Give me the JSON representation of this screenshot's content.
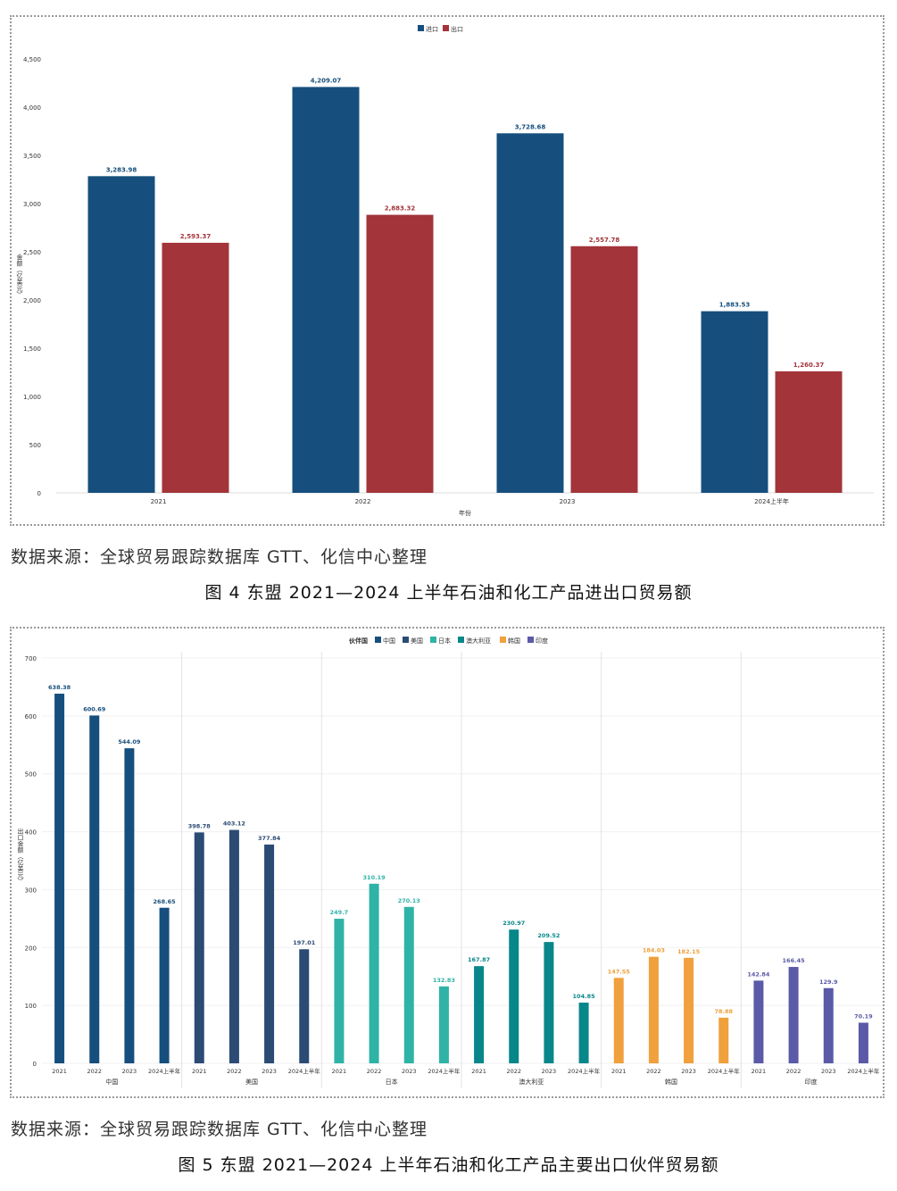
{
  "figures": [
    {
      "source": "数据来源：全球贸易跟踪数据库 GTT、化信中心整理",
      "caption": "图 4 东盟 2021—2024 上半年石油和化工产品进出口贸易额"
    },
    {
      "source": "数据来源：全球贸易跟踪数据库 GTT、化信中心整理",
      "caption": "图 5 东盟 2021—2024 上半年石油和化工产品主要出口伙伴贸易额"
    }
  ],
  "chart_data": [
    {
      "type": "bar",
      "title": "",
      "xlabel": "年份",
      "ylabel": "金额（亿美元）",
      "categories": [
        "2021",
        "2022",
        "2023",
        "2024上半年"
      ],
      "series": [
        {
          "name": "进口",
          "color": "#164f7d",
          "values": [
            3283.98,
            4209.07,
            3728.68,
            1883.53
          ],
          "labels": [
            "3,283.98",
            "4,209.07",
            "3,728.68",
            "1,883.53"
          ]
        },
        {
          "name": "出口",
          "color": "#a3343a",
          "values": [
            2593.37,
            2883.32,
            2557.78,
            1260.37
          ],
          "labels": [
            "2,593.37",
            "2,883.32",
            "2,557.78",
            "1,260.37"
          ]
        }
      ],
      "ylim": [
        0,
        4500
      ],
      "yticks": [
        "0",
        "500",
        "1,000",
        "1,500",
        "2,000",
        "2,500",
        "3,000",
        "3,500",
        "4,000",
        "4,500"
      ],
      "legend_position": "top-center",
      "grid": false
    },
    {
      "type": "bar",
      "title": "",
      "xlabel": "",
      "ylabel": "出口金额（亿美元）",
      "legend_title": "伙伴国",
      "legend_position": "top-center",
      "grid": true,
      "ylim": [
        0,
        700
      ],
      "yticks": [
        "0",
        "100",
        "200",
        "300",
        "400",
        "500",
        "600",
        "700"
      ],
      "periods": [
        "2021",
        "2022",
        "2023",
        "2024上半年"
      ],
      "groups": [
        {
          "name": "中国",
          "color": "#164f7d",
          "values": [
            638.38,
            600.69,
            544.09,
            268.65
          ],
          "labels": [
            "638.38",
            "600.69",
            "544.09",
            "268.65"
          ]
        },
        {
          "name": "美国",
          "color": "#2b4b74",
          "values": [
            398.78,
            403.12,
            377.84,
            197.01
          ],
          "labels": [
            "398.78",
            "403.12",
            "377.84",
            "197.01"
          ]
        },
        {
          "name": "日本",
          "color": "#2fb3a6",
          "values": [
            249.7,
            310.19,
            270.13,
            132.83
          ],
          "labels": [
            "249.7",
            "310.19",
            "270.13",
            "132.83"
          ]
        },
        {
          "name": "澳大利亚",
          "color": "#08878a",
          "values": [
            167.87,
            230.97,
            209.52,
            104.85
          ],
          "labels": [
            "167.87",
            "230.97",
            "209.52",
            "104.85"
          ]
        },
        {
          "name": "韩国",
          "color": "#f0a03c",
          "values": [
            147.55,
            184.03,
            182.15,
            78.88
          ],
          "labels": [
            "147.55",
            "184.03",
            "182.15",
            "78.88"
          ]
        },
        {
          "name": "印度",
          "color": "#5b5aa8",
          "values": [
            142.84,
            166.45,
            129.9,
            70.19
          ],
          "labels": [
            "142.84",
            "166.45",
            "129.9",
            "70.19"
          ]
        }
      ]
    }
  ]
}
